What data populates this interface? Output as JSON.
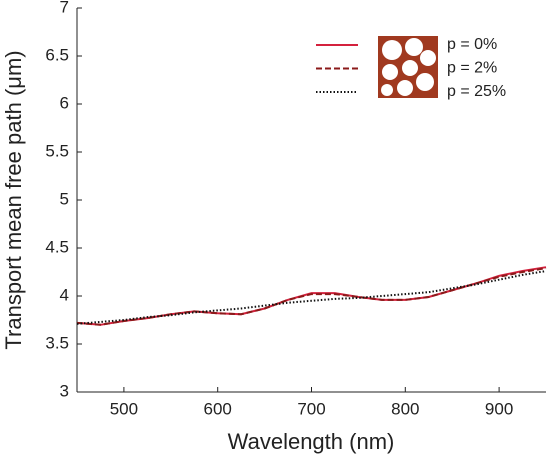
{
  "chart_data": {
    "type": "line",
    "xlabel": "Wavelength (nm)",
    "ylabel": "Transport mean free path (μm)",
    "x": [
      450,
      475,
      500,
      525,
      550,
      575,
      600,
      625,
      650,
      675,
      700,
      725,
      750,
      775,
      800,
      825,
      850,
      875,
      900,
      925,
      950
    ],
    "series": [
      {
        "name": "p = 0%",
        "color": "#d4213d",
        "style": "solid",
        "values": [
          3.72,
          3.7,
          3.74,
          3.77,
          3.81,
          3.84,
          3.82,
          3.81,
          3.87,
          3.96,
          4.03,
          4.03,
          3.99,
          3.96,
          3.96,
          3.99,
          4.06,
          4.13,
          4.21,
          4.26,
          4.3
        ]
      },
      {
        "name": "p = 2%",
        "color": "#8b1a1a",
        "style": "dashed",
        "values": [
          3.72,
          3.7,
          3.74,
          3.77,
          3.81,
          3.84,
          3.82,
          3.81,
          3.87,
          3.96,
          4.02,
          4.02,
          3.99,
          3.96,
          3.96,
          3.99,
          4.06,
          4.13,
          4.2,
          4.25,
          4.29
        ]
      },
      {
        "name": "p = 25%",
        "color": "#111111",
        "style": "dotted",
        "values": [
          3.71,
          3.73,
          3.75,
          3.78,
          3.8,
          3.83,
          3.85,
          3.87,
          3.9,
          3.93,
          3.95,
          3.97,
          3.98,
          4.0,
          4.02,
          4.04,
          4.08,
          4.12,
          4.17,
          4.22,
          4.26
        ]
      }
    ],
    "xlim": [
      450,
      950
    ],
    "xticks": [
      500,
      600,
      700,
      800,
      900
    ],
    "ylim": [
      3,
      7
    ],
    "yticks": [
      3,
      3.5,
      4,
      4.5,
      5,
      5.5,
      6,
      6.5,
      7
    ],
    "legend": "upper-right"
  }
}
